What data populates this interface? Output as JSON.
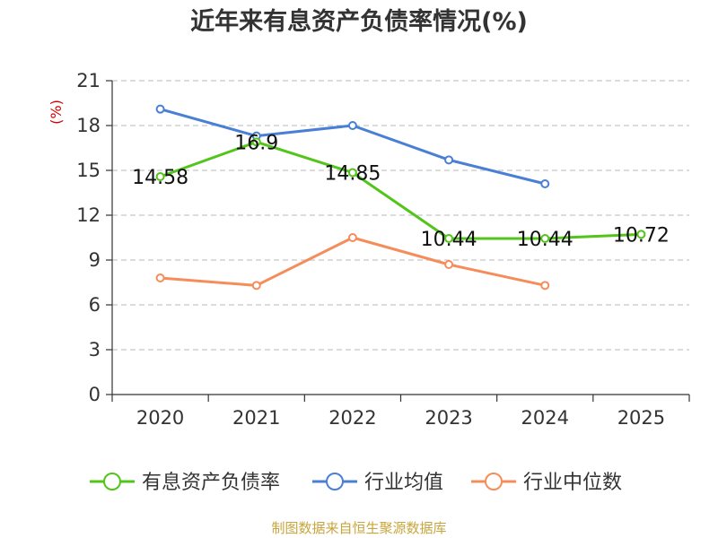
{
  "chart_data": {
    "type": "line",
    "title": "近年来有息资产负债率情况(%)",
    "ylabel": "(%)",
    "xlabel": "",
    "categories": [
      "2020",
      "2021",
      "2022",
      "2023",
      "2024",
      "2025"
    ],
    "ylim": [
      0,
      21
    ],
    "yticks": [
      0,
      3,
      6,
      9,
      12,
      15,
      18,
      21
    ],
    "grid": true,
    "legend_position": "bottom",
    "series": [
      {
        "name": "有息资产负债率",
        "color": "#52c41a",
        "values": [
          14.58,
          16.9,
          14.85,
          10.44,
          10.44,
          10.72
        ],
        "labels": [
          "14.58",
          "16.9",
          "14.85",
          "10.44",
          "10.44",
          "10.72"
        ]
      },
      {
        "name": "行业均值",
        "color": "#4a7fd6",
        "values": [
          19.1,
          17.3,
          18.0,
          15.7,
          14.1,
          null
        ]
      },
      {
        "name": "行业中位数",
        "color": "#f58d5a",
        "values": [
          7.8,
          7.3,
          10.5,
          8.7,
          7.3,
          null
        ]
      }
    ]
  },
  "footer": {
    "source": "制图数据来自恒生聚源数据库"
  }
}
